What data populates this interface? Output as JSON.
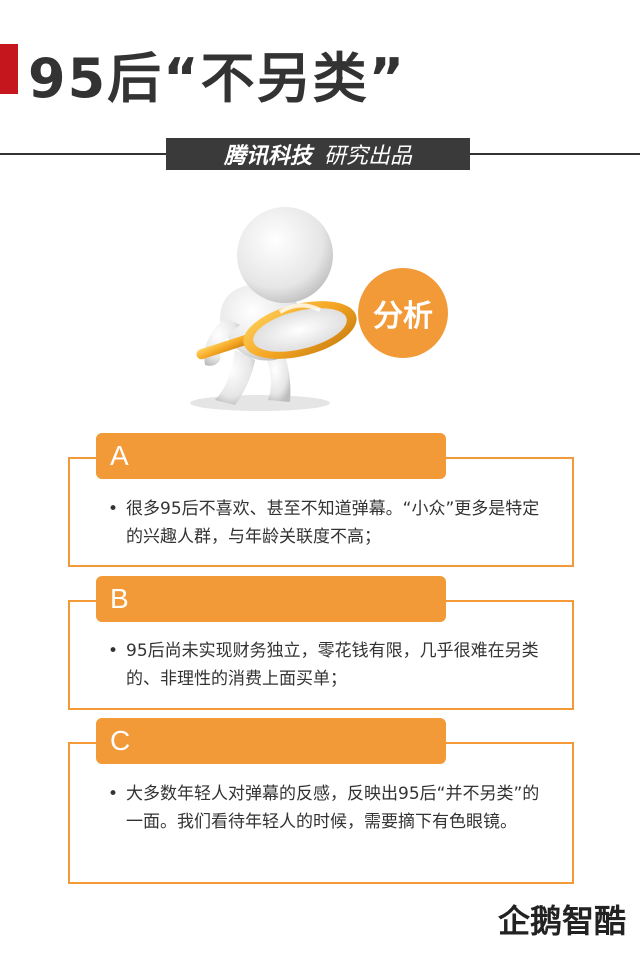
{
  "header": {
    "title": "95后“不另类”",
    "brand": "腾讯科技",
    "subtitle": "研究出品"
  },
  "hero": {
    "badge": "分析"
  },
  "cards": [
    {
      "label": "A",
      "text": "很多95后不喜欢、甚至不知道弹幕。“小众”更多是特定的兴趣人群，与年龄关联度不高；"
    },
    {
      "label": "B",
      "text": "95后尚未实现财务独立，零花钱有限，几乎很难在另类的、非理性的消费上面买单；"
    },
    {
      "label": "C",
      "text": "大多数年轻人对弹幕的反感，反映出95后“并不另类”的一面。我们看待年轻人的时候，需要摘下有色眼镜。"
    }
  ],
  "bullet": "•",
  "footer": {
    "logo": "企鹅智酷"
  },
  "colors": {
    "accent": "#f29a38",
    "title_bar": "#c4161c",
    "dark": "#333333"
  }
}
